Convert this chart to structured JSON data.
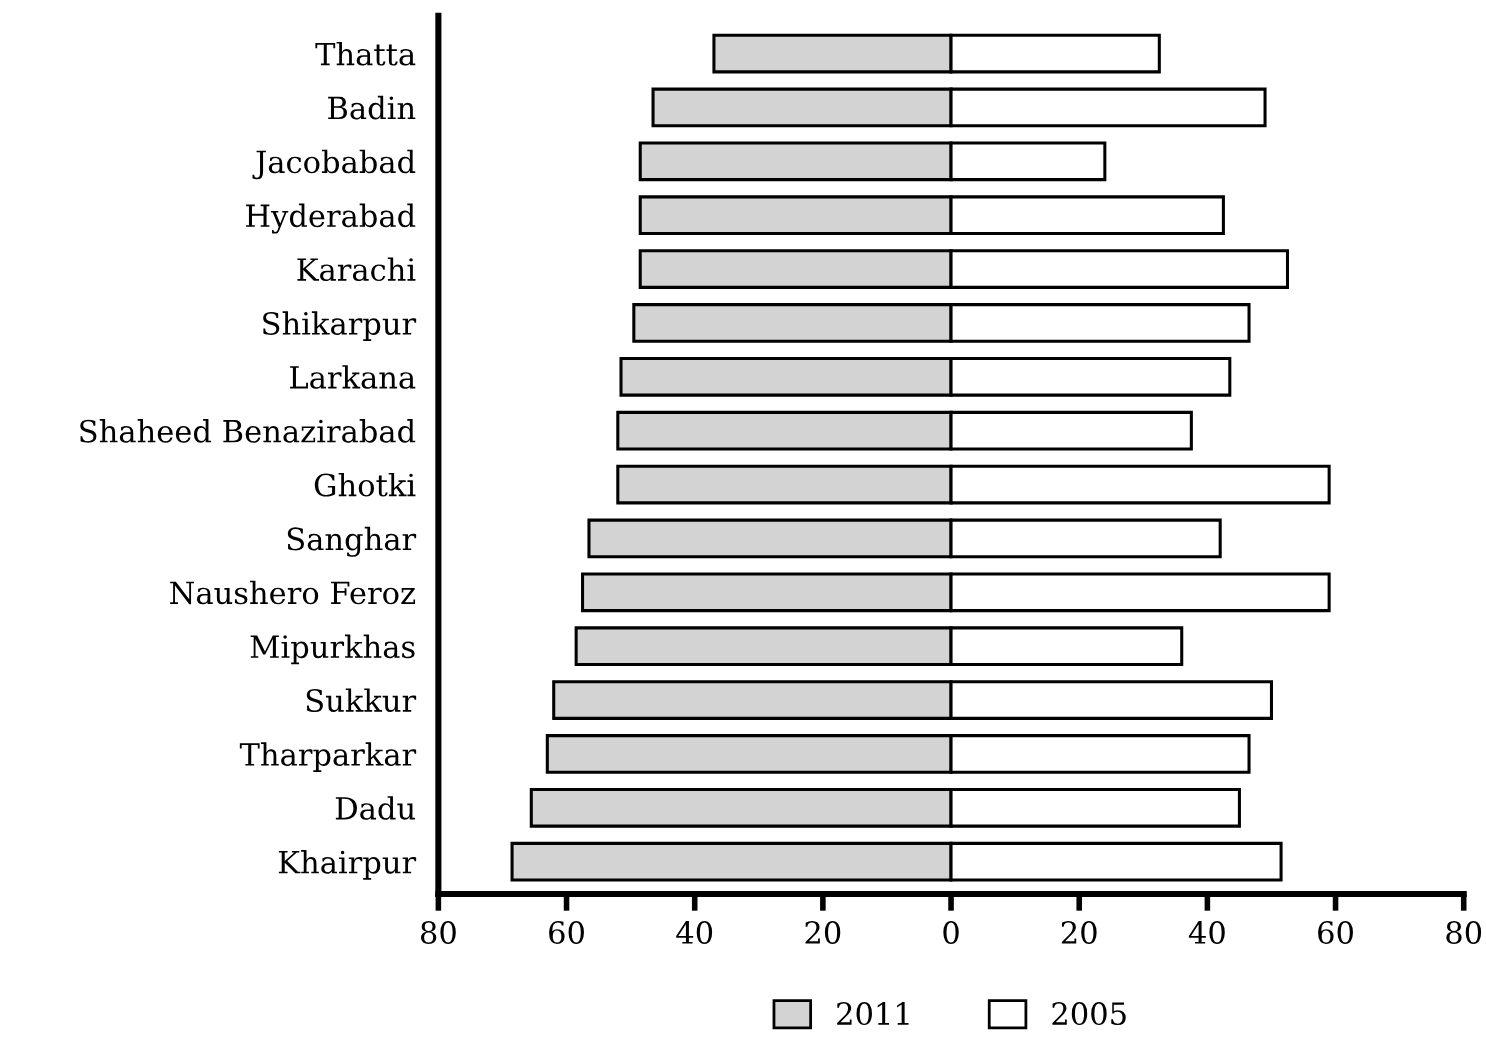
{
  "chart_data": {
    "type": "bar",
    "orientation": "horizontal",
    "categories": [
      "Thatta",
      "Badin",
      "Jacobabad",
      "Hyderabad",
      "Karachi",
      "Shikarpur",
      "Larkana",
      "Shaheed Benazirabad",
      "Ghotki",
      "Sanghar",
      "Naushero Feroz",
      "Mipurkhas",
      "Sukkur",
      "Tharparkar",
      "Dadu",
      "Khairpur"
    ],
    "series": [
      {
        "name": "2011",
        "color": "#d3d3d3",
        "values": [
          -37,
          -46.5,
          -48.5,
          -48.5,
          -48.5,
          -49.5,
          -51.5,
          -52,
          -52,
          -56.5,
          -57.5,
          -58.5,
          -62,
          -63,
          -65.5,
          -68.5
        ]
      },
      {
        "name": "2005",
        "color": "#ffffff",
        "values": [
          32.5,
          49,
          24,
          42.5,
          52.5,
          46.5,
          43.5,
          37.5,
          59,
          42,
          59,
          36,
          50,
          46.5,
          45,
          51.5
        ]
      }
    ],
    "xlim": [
      -80,
      80
    ],
    "xticks": [
      {
        "value": -80,
        "label": "80"
      },
      {
        "value": -60,
        "label": "60"
      },
      {
        "value": -40,
        "label": "40"
      },
      {
        "value": -20,
        "label": "20"
      },
      0,
      20,
      40,
      60,
      80
    ],
    "grid": false,
    "legend": "bottom",
    "stacked": true
  }
}
